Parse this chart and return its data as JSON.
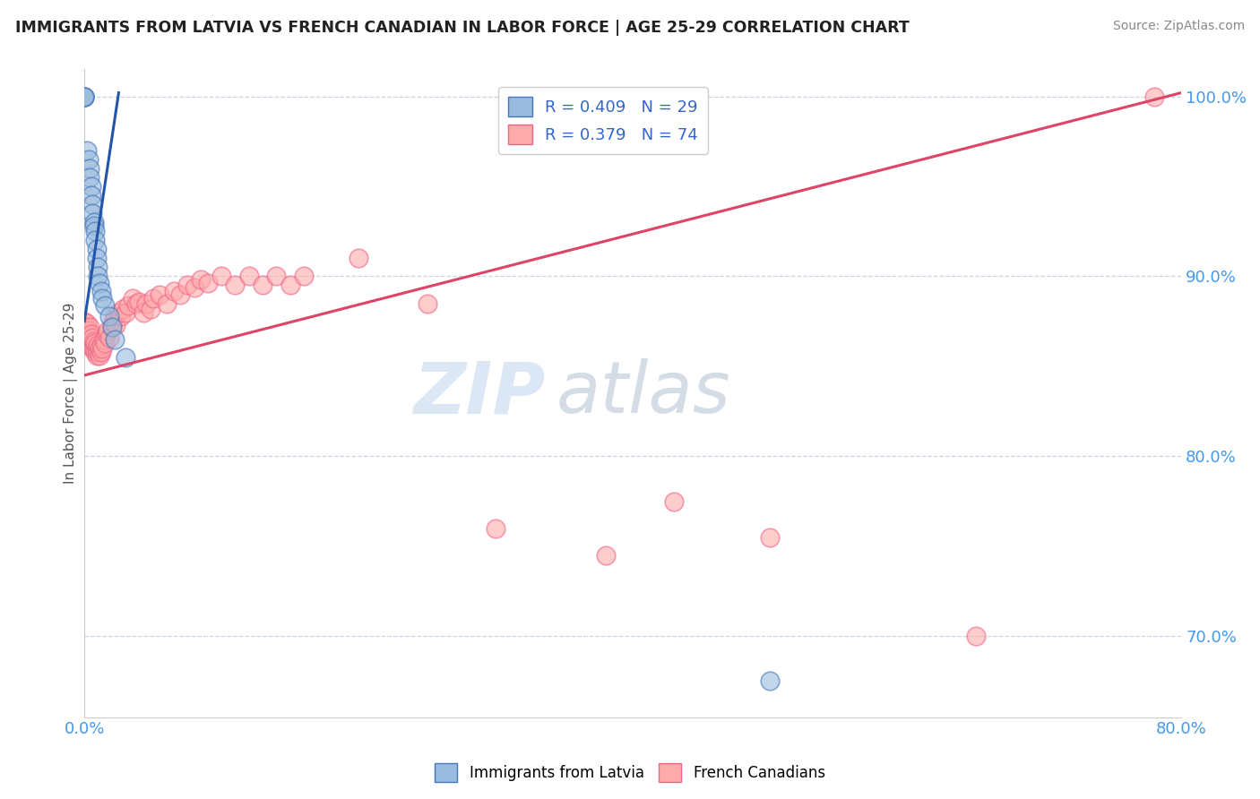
{
  "title": "IMMIGRANTS FROM LATVIA VS FRENCH CANADIAN IN LABOR FORCE | AGE 25-29 CORRELATION CHART",
  "source": "Source: ZipAtlas.com",
  "ylabel": "In Labor Force | Age 25-29",
  "xmin": 0.0,
  "xmax": 0.8,
  "ymin": 0.655,
  "ymax": 1.015,
  "xticks": [
    0.0,
    0.8
  ],
  "xticklabels": [
    "0.0%",
    "80.0%"
  ],
  "yticks": [
    0.7,
    0.8,
    0.9,
    1.0
  ],
  "yticklabels": [
    "70.0%",
    "80.0%",
    "90.0%",
    "100.0%"
  ],
  "legend_labels": [
    "Immigrants from Latvia",
    "French Canadians"
  ],
  "r_blue": 0.409,
  "n_blue": 29,
  "r_pink": 0.379,
  "n_pink": 74,
  "blue_color": "#99BBDD",
  "pink_color": "#FFAAAA",
  "blue_edge_color": "#4477BB",
  "pink_edge_color": "#EE6688",
  "blue_line_color": "#2255AA",
  "pink_line_color": "#DD4466",
  "watermark_zip": "ZIP",
  "watermark_atlas": "atlas",
  "blue_scatter_x": [
    0.0,
    0.0,
    0.0,
    0.0,
    0.002,
    0.003,
    0.004,
    0.004,
    0.005,
    0.005,
    0.006,
    0.006,
    0.007,
    0.007,
    0.008,
    0.008,
    0.009,
    0.009,
    0.01,
    0.01,
    0.011,
    0.012,
    0.013,
    0.015,
    0.018,
    0.02,
    0.022,
    0.03,
    0.5
  ],
  "blue_scatter_y": [
    1.0,
    1.0,
    1.0,
    1.0,
    0.97,
    0.965,
    0.96,
    0.955,
    0.95,
    0.945,
    0.94,
    0.935,
    0.93,
    0.928,
    0.925,
    0.92,
    0.915,
    0.91,
    0.905,
    0.9,
    0.896,
    0.892,
    0.888,
    0.884,
    0.878,
    0.872,
    0.865,
    0.855,
    0.675
  ],
  "pink_scatter_x": [
    0.0,
    0.0,
    0.0,
    0.001,
    0.001,
    0.002,
    0.002,
    0.003,
    0.003,
    0.003,
    0.004,
    0.004,
    0.005,
    0.005,
    0.005,
    0.006,
    0.006,
    0.007,
    0.007,
    0.008,
    0.008,
    0.009,
    0.009,
    0.01,
    0.01,
    0.011,
    0.011,
    0.012,
    0.012,
    0.013,
    0.014,
    0.015,
    0.016,
    0.017,
    0.018,
    0.02,
    0.021,
    0.022,
    0.023,
    0.025,
    0.027,
    0.028,
    0.03,
    0.032,
    0.035,
    0.038,
    0.04,
    0.043,
    0.045,
    0.048,
    0.05,
    0.055,
    0.06,
    0.065,
    0.07,
    0.075,
    0.08,
    0.085,
    0.09,
    0.1,
    0.11,
    0.12,
    0.13,
    0.14,
    0.15,
    0.16,
    0.2,
    0.25,
    0.3,
    0.38,
    0.43,
    0.5,
    0.65,
    0.78
  ],
  "pink_scatter_y": [
    0.87,
    0.875,
    0.87,
    0.872,
    0.868,
    0.874,
    0.87,
    0.866,
    0.862,
    0.87,
    0.868,
    0.872,
    0.865,
    0.868,
    0.862,
    0.86,
    0.866,
    0.86,
    0.864,
    0.858,
    0.863,
    0.856,
    0.86,
    0.858,
    0.862,
    0.856,
    0.86,
    0.858,
    0.862,
    0.86,
    0.865,
    0.863,
    0.868,
    0.87,
    0.866,
    0.872,
    0.875,
    0.878,
    0.873,
    0.88,
    0.878,
    0.882,
    0.88,
    0.884,
    0.888,
    0.885,
    0.886,
    0.88,
    0.885,
    0.882,
    0.888,
    0.89,
    0.885,
    0.892,
    0.89,
    0.895,
    0.894,
    0.898,
    0.896,
    0.9,
    0.895,
    0.9,
    0.895,
    0.9,
    0.895,
    0.9,
    0.91,
    0.885,
    0.76,
    0.745,
    0.775,
    0.755,
    0.7,
    1.0
  ]
}
